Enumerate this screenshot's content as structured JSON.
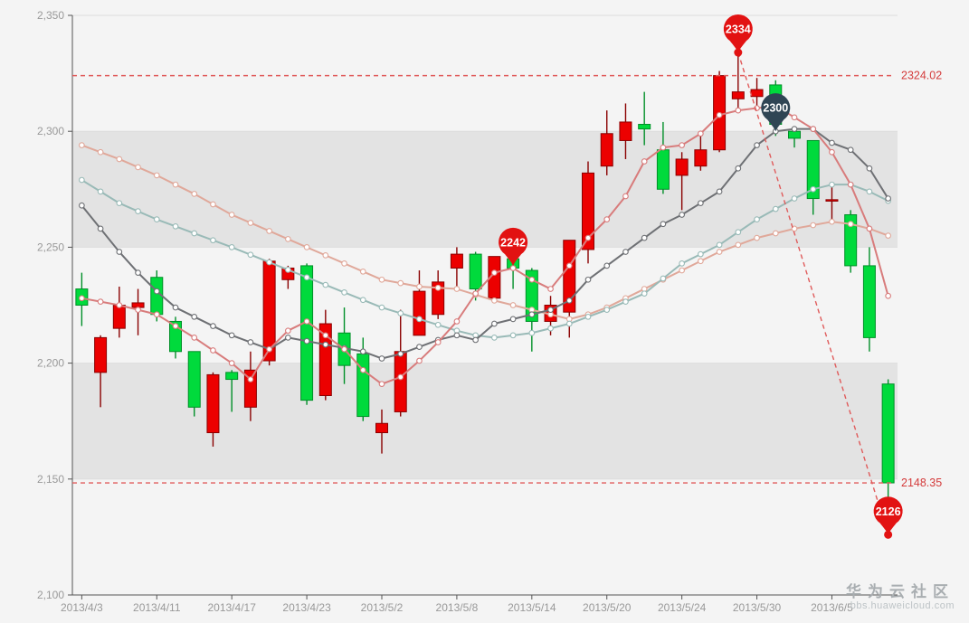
{
  "watermark": {
    "title": "华为云社区",
    "subtitle": "bbs.huaweicloud.com"
  },
  "axis": {
    "y_ticks": [
      {
        "label": "2,350",
        "value": 2350
      },
      {
        "label": "2,300",
        "value": 2300
      },
      {
        "label": "2,250",
        "value": 2250
      },
      {
        "label": "2,200",
        "value": 2200
      },
      {
        "label": "2,150",
        "value": 2150
      },
      {
        "label": "2,100",
        "value": 2100
      }
    ],
    "x_ticks": [
      {
        "label": "2013/4/3",
        "index": 0
      },
      {
        "label": "2013/4/11",
        "index": 4
      },
      {
        "label": "2013/4/17",
        "index": 8
      },
      {
        "label": "2013/4/23",
        "index": 12
      },
      {
        "label": "2013/5/2",
        "index": 16
      },
      {
        "label": "2013/5/8",
        "index": 20
      },
      {
        "label": "2013/5/14",
        "index": 24
      },
      {
        "label": "2013/5/20",
        "index": 28
      },
      {
        "label": "2013/5/24",
        "index": 32
      },
      {
        "label": "2013/5/30",
        "index": 36
      },
      {
        "label": "2013/6/5",
        "index": 40
      }
    ]
  },
  "chart_data": {
    "type": "candlestick",
    "title": "",
    "ylim": [
      2100,
      2350
    ],
    "grid": "alternating-bands",
    "legend": "none",
    "dates": [
      "2013/4/3",
      "2013/4/8",
      "2013/4/9",
      "2013/4/10",
      "2013/4/11",
      "2013/4/12",
      "2013/4/15",
      "2013/4/16",
      "2013/4/17",
      "2013/4/18",
      "2013/4/19",
      "2013/4/22",
      "2013/4/23",
      "2013/4/24",
      "2013/4/25",
      "2013/4/26",
      "2013/5/2",
      "2013/5/3",
      "2013/5/6",
      "2013/5/7",
      "2013/5/8",
      "2013/5/9",
      "2013/5/10",
      "2013/5/13",
      "2013/5/14",
      "2013/5/15",
      "2013/5/16",
      "2013/5/17",
      "2013/5/20",
      "2013/5/21",
      "2013/5/22",
      "2013/5/23",
      "2013/5/24",
      "2013/5/27",
      "2013/5/28",
      "2013/5/29",
      "2013/5/30",
      "2013/5/31",
      "2013/6/3",
      "2013/6/4",
      "2013/6/5",
      "2013/6/6",
      "2013/6/7",
      "2013/6/13"
    ],
    "ohlc_order": [
      "open",
      "close",
      "low",
      "high"
    ],
    "candles": [
      [
        2232,
        2225,
        2216,
        2239
      ],
      [
        2196,
        2211,
        2181,
        2212
      ],
      [
        2215,
        2225,
        2211,
        2233
      ],
      [
        2224,
        2226,
        2212,
        2232
      ],
      [
        2237,
        2221,
        2218,
        2240
      ],
      [
        2218,
        2205,
        2202,
        2220
      ],
      [
        2205,
        2181,
        2177,
        2205
      ],
      [
        2170,
        2195,
        2164,
        2196
      ],
      [
        2196,
        2193,
        2179,
        2197
      ],
      [
        2181,
        2197,
        2175,
        2205
      ],
      [
        2201,
        2244,
        2199,
        2245
      ],
      [
        2236,
        2241,
        2232,
        2242
      ],
      [
        2242,
        2184,
        2182,
        2243
      ],
      [
        2186,
        2217,
        2184,
        2223
      ],
      [
        2213,
        2199,
        2191,
        2224
      ],
      [
        2204,
        2177,
        2175,
        2211
      ],
      [
        2170,
        2174,
        2161,
        2180
      ],
      [
        2179,
        2205,
        2177,
        2223
      ],
      [
        2212,
        2231,
        2212,
        2240
      ],
      [
        2221,
        2235,
        2219,
        2240
      ],
      [
        2241,
        2247,
        2231,
        2250
      ],
      [
        2247,
        2232,
        2227,
        2248
      ],
      [
        2228,
        2246,
        2226,
        2246
      ],
      [
        2245,
        2241,
        2232,
        2246
      ],
      [
        2240,
        2218,
        2205,
        2241
      ],
      [
        2218,
        2225,
        2212,
        2229
      ],
      [
        2222,
        2253,
        2211,
        2253
      ],
      [
        2249,
        2282,
        2243,
        2287
      ],
      [
        2285,
        2299,
        2281,
        2309
      ],
      [
        2296,
        2304,
        2288,
        2312
      ],
      [
        2303,
        2301,
        2294,
        2317
      ],
      [
        2292,
        2275,
        2273,
        2304
      ],
      [
        2281,
        2288,
        2266,
        2291
      ],
      [
        2285,
        2292,
        2283,
        2300
      ],
      [
        2292,
        2324.02,
        2291,
        2326
      ],
      [
        2314,
        2317,
        2308,
        2334
      ],
      [
        2315,
        2318,
        2310,
        2323
      ],
      [
        2320,
        2303,
        2298,
        2322
      ],
      [
        2300,
        2297,
        2293,
        2301
      ],
      [
        2296,
        2271,
        2264,
        2296
      ],
      [
        2270,
        2270.5,
        2260,
        2277
      ],
      [
        2264,
        2242,
        2239,
        2266
      ],
      [
        2242,
        2211,
        2205,
        2250
      ],
      [
        2191,
        2148.35,
        2126,
        2193
      ]
    ],
    "up_color": "#ec0000",
    "up_border_color": "#8a0000",
    "down_color": "#00da3c",
    "down_border_color": "#008f28",
    "ma_series": [
      {
        "name": "MA30",
        "color": "#e0a89a",
        "keyframes": [
          [
            0,
            2294
          ],
          [
            2,
            2288
          ],
          [
            4,
            2281
          ],
          [
            6,
            2273
          ],
          [
            8,
            2264
          ],
          [
            10,
            2257
          ],
          [
            12,
            2250
          ],
          [
            14,
            2243
          ],
          [
            16,
            2236
          ],
          [
            18,
            2233
          ],
          [
            20,
            2232
          ],
          [
            22,
            2227
          ],
          [
            24,
            2223
          ],
          [
            26,
            2219
          ],
          [
            27,
            2221
          ],
          [
            28,
            2224
          ],
          [
            30,
            2232
          ],
          [
            32,
            2240
          ],
          [
            34,
            2248
          ],
          [
            36,
            2254
          ],
          [
            38,
            2258
          ],
          [
            40,
            2261
          ],
          [
            41,
            2260
          ],
          [
            42,
            2258
          ],
          [
            43,
            2255
          ]
        ]
      },
      {
        "name": "MA20",
        "color": "#99bab7",
        "keyframes": [
          [
            0,
            2279
          ],
          [
            2,
            2269
          ],
          [
            4,
            2262
          ],
          [
            8,
            2250
          ],
          [
            12,
            2237
          ],
          [
            16,
            2224
          ],
          [
            20,
            2214
          ],
          [
            21,
            2212
          ],
          [
            22,
            2211
          ],
          [
            24,
            2213
          ],
          [
            26,
            2217
          ],
          [
            28,
            2223
          ],
          [
            30,
            2230
          ],
          [
            32,
            2243
          ],
          [
            34,
            2251
          ],
          [
            36,
            2262
          ],
          [
            38,
            2271
          ],
          [
            39,
            2275
          ],
          [
            40,
            2277
          ],
          [
            41,
            2277
          ],
          [
            42,
            2274
          ],
          [
            43,
            2270
          ]
        ]
      },
      {
        "name": "MA10",
        "color": "#6e7074",
        "keyframes": [
          [
            0,
            2268
          ],
          [
            1,
            2258
          ],
          [
            2,
            2248
          ],
          [
            3,
            2239
          ],
          [
            4,
            2231
          ],
          [
            5,
            2224
          ],
          [
            6,
            2220
          ],
          [
            7,
            2216
          ],
          [
            8,
            2212
          ],
          [
            9,
            2209
          ],
          [
            10,
            2206
          ],
          [
            11,
            2211
          ],
          [
            13,
            2208
          ],
          [
            15,
            2205
          ],
          [
            16,
            2202
          ],
          [
            17,
            2204
          ],
          [
            18,
            2207
          ],
          [
            19,
            2210
          ],
          [
            20,
            2212
          ],
          [
            21,
            2210
          ],
          [
            22,
            2217
          ],
          [
            23,
            2219
          ],
          [
            24,
            2221
          ],
          [
            25,
            2223
          ],
          [
            26,
            2227
          ],
          [
            27,
            2236
          ],
          [
            28,
            2242
          ],
          [
            29,
            2248
          ],
          [
            30,
            2254
          ],
          [
            31,
            2260
          ],
          [
            32,
            2264
          ],
          [
            33,
            2269
          ],
          [
            34,
            2274
          ],
          [
            35,
            2284
          ],
          [
            36,
            2294
          ],
          [
            37,
            2300
          ],
          [
            38,
            2301
          ],
          [
            39,
            2301
          ],
          [
            40,
            2295
          ],
          [
            41,
            2292
          ],
          [
            42,
            2284
          ],
          [
            43,
            2271
          ]
        ]
      },
      {
        "name": "MA5",
        "color": "#d87c7c",
        "keyframes": [
          [
            0,
            2228
          ],
          [
            2,
            2225
          ],
          [
            4,
            2221
          ],
          [
            6,
            2211
          ],
          [
            8,
            2200
          ],
          [
            9,
            2193
          ],
          [
            10,
            2206
          ],
          [
            11,
            2214
          ],
          [
            12,
            2218
          ],
          [
            13,
            2212
          ],
          [
            14,
            2206
          ],
          [
            15,
            2197
          ],
          [
            16,
            2191
          ],
          [
            17,
            2194
          ],
          [
            18,
            2201
          ],
          [
            19,
            2209
          ],
          [
            20,
            2218
          ],
          [
            21,
            2230
          ],
          [
            22,
            2239
          ],
          [
            23,
            2241
          ],
          [
            24,
            2236
          ],
          [
            25,
            2232
          ],
          [
            26,
            2242
          ],
          [
            27,
            2254
          ],
          [
            28,
            2262
          ],
          [
            29,
            2272
          ],
          [
            30,
            2287
          ],
          [
            31,
            2293
          ],
          [
            32,
            2294
          ],
          [
            33,
            2299
          ],
          [
            34,
            2307
          ],
          [
            35,
            2309
          ],
          [
            37,
            2311
          ],
          [
            39,
            2301
          ],
          [
            40,
            2291
          ],
          [
            41,
            2277
          ],
          [
            42,
            2258
          ],
          [
            43,
            2229
          ]
        ]
      }
    ],
    "mark_lines": [
      {
        "name": "max-close",
        "label": "2324.02",
        "value": 2324.02
      },
      {
        "name": "min-close",
        "label": "2148.35",
        "value": 2148.35
      }
    ],
    "mark_line_segment": {
      "name": "from-lowest-to-highest",
      "from": {
        "index": 35,
        "value": 2334
      },
      "to": {
        "index": 43,
        "value": 2126
      }
    },
    "mark_points": [
      {
        "label": "2334",
        "index": 35,
        "value": 2334,
        "color": "#e21212",
        "text_color": "#ffffff"
      },
      {
        "label": "2300",
        "index": 37,
        "value": 2300,
        "color": "#2f4554",
        "text_color": "#ffffff"
      },
      {
        "label": "2242",
        "index": 23,
        "value": 2242,
        "color": "#e21212",
        "text_color": "#ffffff"
      },
      {
        "label": "2126",
        "index": 43,
        "value": 2126,
        "color": "#e21212",
        "text_color": "#ffffff"
      }
    ]
  },
  "colors": {
    "background": "#f4f4f4",
    "band": "#e3e3e3",
    "split_line": "#dcdcdc",
    "axis_line": "#555555",
    "axis_label": "#999999",
    "mark_dash": "#e05b5b",
    "mark_label": "#d43c3c"
  }
}
